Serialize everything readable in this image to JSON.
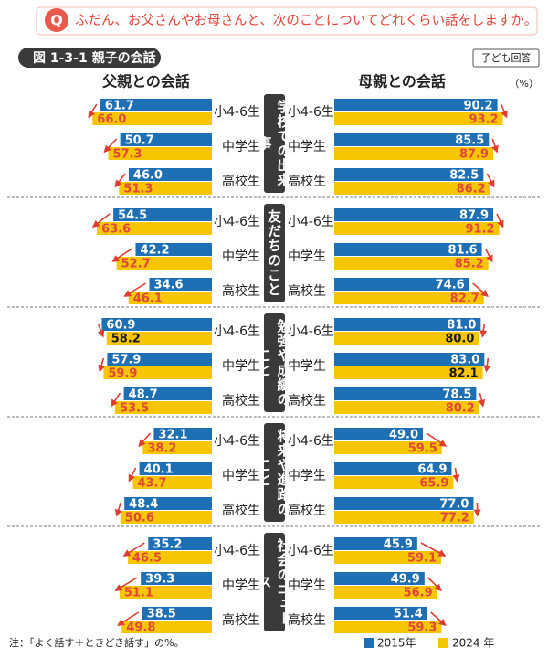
{
  "chart_data": {
    "type": "bar",
    "question_mark": "Q",
    "question": "ふだん、お父さんやお母さんと、次のことについてどれくらい話をしますか。",
    "title": "図 1-3-1 親子の会話",
    "badge": "子ども回答",
    "unit": "（%）",
    "panels": [
      "父親との会話",
      "母親との会話"
    ],
    "groups": [
      "学校での出来事",
      "友だちのこと",
      "勉強や成績のこと",
      "将来や進路のこと",
      "社会のニュース"
    ],
    "categories": [
      "小4-6生",
      "中学生",
      "高校生"
    ],
    "series": [
      {
        "name": "2015年",
        "color": "#1f6fb5",
        "values": [
          [
            [
              61.7,
              50.7,
              46.0
            ],
            [
              54.5,
              42.2,
              34.6
            ],
            [
              60.9,
              57.9,
              48.7
            ],
            [
              32.1,
              40.1,
              48.4
            ],
            [
              35.2,
              39.3,
              38.5
            ]
          ],
          [
            [
              90.2,
              85.5,
              82.5
            ],
            [
              87.9,
              81.6,
              74.6
            ],
            [
              81.0,
              83.0,
              78.5
            ],
            [
              49.0,
              64.9,
              77.0
            ],
            [
              45.9,
              49.9,
              51.4
            ]
          ]
        ],
        "value_labels": [
          [
            [
              "61.7",
              "50.7",
              "46.0"
            ],
            [
              "54.5",
              "42.2",
              "34.6"
            ],
            [
              "60.9",
              "57.9",
              "48.7"
            ],
            [
              "32.1",
              "40.1",
              "48.4"
            ],
            [
              "35.2",
              "39.3",
              "38.5"
            ]
          ],
          [
            [
              "90.2",
              "85.5",
              "82.5"
            ],
            [
              "87.9",
              "81.6",
              "74.6"
            ],
            [
              "81.0",
              "83.0",
              "78.5"
            ],
            [
              "49.0",
              "64.9",
              "77.0"
            ],
            [
              "45.9",
              "49.9",
              "51.4"
            ]
          ]
        ]
      },
      {
        "name": "2024 年",
        "color": "#f7c600",
        "values": [
          [
            [
              66.0,
              57.3,
              51.3
            ],
            [
              63.6,
              52.7,
              46.1
            ],
            [
              58.2,
              59.9,
              53.5
            ],
            [
              38.2,
              43.7,
              50.6
            ],
            [
              46.5,
              51.1,
              49.8
            ]
          ],
          [
            [
              93.2,
              87.9,
              86.2
            ],
            [
              91.2,
              85.2,
              82.7
            ],
            [
              80.0,
              82.1,
              80.2
            ],
            [
              59.5,
              65.9,
              77.2
            ],
            [
              59.1,
              56.9,
              59.3
            ]
          ]
        ],
        "value_labels": [
          [
            [
              "66.0",
              "57.3",
              "51.3"
            ],
            [
              "63.6",
              "52.7",
              "46.1"
            ],
            [
              "58.2",
              "59.9",
              "53.5"
            ],
            [
              "38.2",
              "43.7",
              "50.6"
            ],
            [
              "46.5",
              "51.1",
              "49.8"
            ]
          ],
          [
            [
              "93.2",
              "87.9",
              "86.2"
            ],
            [
              "91.2",
              "85.2",
              "82.7"
            ],
            [
              "80.0",
              "82.1",
              "80.2"
            ],
            [
              "59.5",
              "65.9",
              "77.2"
            ],
            [
              "59.1",
              "56.9",
              "59.3"
            ]
          ]
        ]
      }
    ],
    "note": "注：「よく話す＋ときどき話す」の%。"
  }
}
